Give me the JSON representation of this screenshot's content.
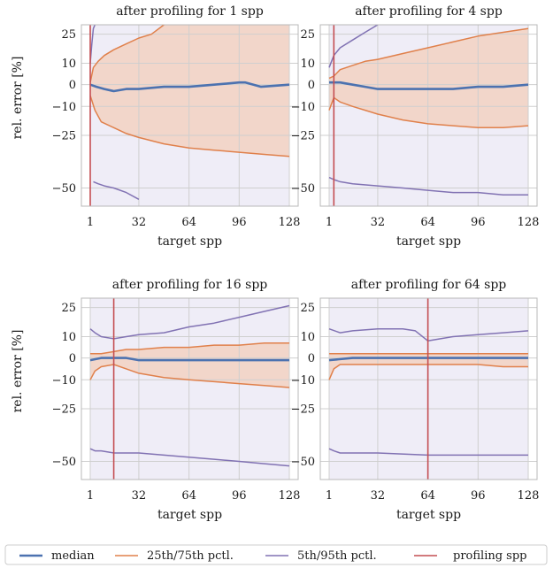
{
  "colors": {
    "median": "#4c72b0",
    "quartile": "#e0804b",
    "p5_95": "#8172b3",
    "profiling": "#c44e52",
    "fill_outer": "#efedf7",
    "fill_inner": "#f2d6ca",
    "grid": "#cfcfcf"
  },
  "legend": {
    "median": "median",
    "quartile": "25th/75th pctl.",
    "p5_95": "5th/95th pctl.",
    "profiling": "profiling spp"
  },
  "chart_data": [
    {
      "type": "line",
      "title": "after profiling for 1 spp",
      "xlabel": "target spp",
      "ylabel": "rel. error [%]",
      "xlim": [
        1,
        128
      ],
      "xticks": [
        "1",
        "32",
        "64",
        "96",
        "128"
      ],
      "yticks": [
        "25",
        "10",
        "0",
        "−10",
        "−25",
        "−50"
      ],
      "profiling_spp": 1,
      "series": [
        {
          "name": "median",
          "x": [
            1,
            5,
            10,
            16,
            24,
            32,
            48,
            64,
            80,
            96,
            100,
            110,
            128
          ],
          "y": [
            0,
            -1,
            -2,
            -3,
            -2,
            -2,
            -1,
            -1,
            0,
            1,
            1,
            -1,
            0
          ]
        },
        {
          "name": "25th/75th pctl.",
          "x": [
            1,
            3,
            6,
            10,
            16,
            24,
            32,
            40,
            48
          ],
          "y": [
            1,
            8,
            11,
            14,
            17,
            20,
            23,
            25,
            32
          ]
        },
        {
          "name": "25th/75th pctl.",
          "x": [
            1,
            4,
            8,
            16,
            24,
            32,
            48,
            64,
            80,
            96,
            112,
            128
          ],
          "y": [
            -5,
            -12,
            -18,
            -21,
            -24,
            -26,
            -29,
            -31,
            -32,
            -33,
            -34,
            -35
          ]
        },
        {
          "name": "5th/95th pctl.",
          "x": [
            1,
            2,
            3,
            4
          ],
          "y": [
            10,
            20,
            28,
            36
          ]
        },
        {
          "name": "5th/95th pctl.",
          "x": [
            3,
            6,
            10,
            16,
            24,
            32
          ],
          "y": [
            -47,
            -48,
            -49,
            -50,
            -52,
            -55
          ]
        }
      ]
    },
    {
      "type": "line",
      "title": "after profiling for 4 spp",
      "xlabel": "target spp",
      "ylabel": "",
      "xlim": [
        1,
        128
      ],
      "xticks": [
        "1",
        "32",
        "64",
        "96",
        "128"
      ],
      "yticks": [
        "25",
        "10",
        "0",
        "−10",
        "−25",
        "−50"
      ],
      "profiling_spp": 4,
      "series": [
        {
          "name": "median",
          "x": [
            1,
            8,
            16,
            24,
            32,
            48,
            64,
            80,
            96,
            112,
            128
          ],
          "y": [
            1,
            1,
            0,
            -1,
            -2,
            -2,
            -2,
            -2,
            -1,
            -1,
            0
          ]
        },
        {
          "name": "25th/75th pctl.",
          "x": [
            1,
            4,
            8,
            16,
            24,
            32,
            48,
            64,
            80,
            96,
            112,
            128
          ],
          "y": [
            3,
            4,
            7,
            9,
            11,
            12,
            15,
            18,
            21,
            24,
            26,
            28
          ]
        },
        {
          "name": "25th/75th pctl.",
          "x": [
            1,
            4,
            8,
            16,
            24,
            32,
            48,
            64,
            80,
            96,
            112,
            128
          ],
          "y": [
            -12,
            -6,
            -8,
            -10,
            -12,
            -14,
            -17,
            -19,
            -20,
            -21,
            -21,
            -20
          ]
        },
        {
          "name": "5th/95th pctl.",
          "x": [
            1,
            4,
            8,
            16,
            24,
            32
          ],
          "y": [
            8,
            14,
            18,
            22,
            26,
            30
          ]
        },
        {
          "name": "5th/95th pctl.",
          "x": [
            1,
            4,
            8,
            16,
            32,
            48,
            64,
            80,
            96,
            112,
            128
          ],
          "y": [
            -45,
            -46,
            -47,
            -48,
            -49,
            -50,
            -51,
            -52,
            -52,
            -53,
            -53
          ]
        }
      ]
    },
    {
      "type": "line",
      "title": "after profiling for 16 spp",
      "xlabel": "target spp",
      "ylabel": "rel. error [%]",
      "xlim": [
        1,
        128
      ],
      "xticks": [
        "1",
        "32",
        "64",
        "96",
        "128"
      ],
      "yticks": [
        "25",
        "10",
        "0",
        "−10",
        "−25",
        "−50"
      ],
      "profiling_spp": 16,
      "series": [
        {
          "name": "median",
          "x": [
            1,
            8,
            16,
            24,
            32,
            48,
            64,
            80,
            96,
            112,
            128
          ],
          "y": [
            -1,
            0,
            0,
            0,
            -1,
            -1,
            -1,
            -1,
            -1,
            -1,
            -1
          ]
        },
        {
          "name": "25th/75th pctl.",
          "x": [
            1,
            8,
            16,
            24,
            32,
            48,
            64,
            80,
            96,
            112,
            128
          ],
          "y": [
            2,
            2,
            3,
            4,
            4,
            5,
            5,
            6,
            6,
            7,
            7
          ]
        },
        {
          "name": "25th/75th pctl.",
          "x": [
            1,
            4,
            8,
            16,
            24,
            32,
            48,
            64,
            80,
            96,
            112,
            128
          ],
          "y": [
            -10,
            -6,
            -4,
            -3,
            -5,
            -7,
            -9,
            -10,
            -11,
            -12,
            -13,
            -14
          ]
        },
        {
          "name": "5th/95th pctl.",
          "x": [
            1,
            4,
            8,
            16,
            24,
            32,
            48,
            64,
            80,
            96,
            112,
            128
          ],
          "y": [
            14,
            12,
            10,
            9,
            10,
            11,
            12,
            15,
            17,
            20,
            23,
            26
          ]
        },
        {
          "name": "5th/95th pctl.",
          "x": [
            1,
            4,
            8,
            16,
            32,
            48,
            64,
            80,
            96,
            112,
            128
          ],
          "y": [
            -44,
            -45,
            -45,
            -46,
            -46,
            -47,
            -48,
            -49,
            -50,
            -51,
            -52
          ]
        }
      ]
    },
    {
      "type": "line",
      "title": "after profiling for 64 spp",
      "xlabel": "target spp",
      "ylabel": "",
      "xlim": [
        1,
        128
      ],
      "xticks": [
        "1",
        "32",
        "64",
        "96",
        "128"
      ],
      "yticks": [
        "25",
        "10",
        "0",
        "−10",
        "−25",
        "−50"
      ],
      "profiling_spp": 64,
      "series": [
        {
          "name": "median",
          "x": [
            1,
            16,
            32,
            48,
            64,
            80,
            96,
            112,
            128
          ],
          "y": [
            -1,
            0,
            0,
            0,
            0,
            0,
            0,
            0,
            0
          ]
        },
        {
          "name": "25th/75th pctl.",
          "x": [
            1,
            8,
            16,
            32,
            48,
            64,
            80,
            96,
            112,
            128
          ],
          "y": [
            2,
            2,
            2,
            2,
            2,
            2,
            2,
            2,
            2,
            2
          ]
        },
        {
          "name": "25th/75th pctl.",
          "x": [
            1,
            4,
            8,
            16,
            24,
            32,
            48,
            64,
            80,
            96,
            112,
            128
          ],
          "y": [
            -10,
            -5,
            -3,
            -3,
            -3,
            -3,
            -3,
            -3,
            -3,
            -3,
            -4,
            -4
          ]
        },
        {
          "name": "5th/95th pctl.",
          "x": [
            1,
            8,
            16,
            32,
            48,
            56,
            64,
            72,
            80,
            96,
            112,
            128
          ],
          "y": [
            14,
            12,
            13,
            14,
            14,
            13,
            8,
            9,
            10,
            11,
            12,
            13
          ]
        },
        {
          "name": "5th/95th pctl.",
          "x": [
            1,
            4,
            8,
            16,
            32,
            64,
            96,
            128
          ],
          "y": [
            -44,
            -45,
            -46,
            -46,
            -46,
            -47,
            -47,
            -47
          ]
        }
      ]
    }
  ]
}
